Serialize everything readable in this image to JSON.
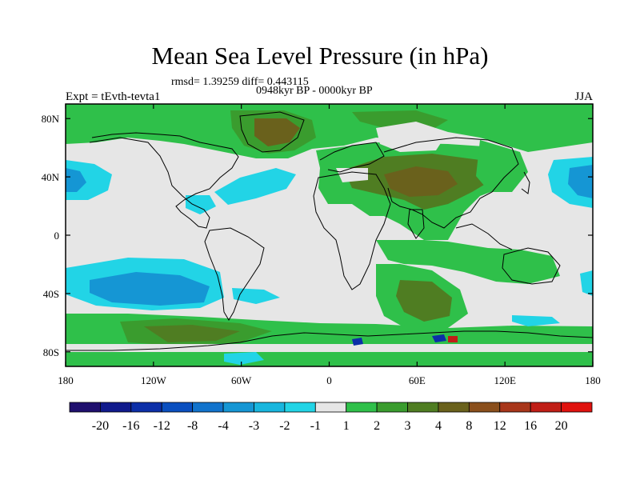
{
  "chart_data": {
    "type": "heatmap",
    "title": "Mean Sea Level Pressure (in hPa)",
    "stats": "rmsd= 1.39259 diff= 0.443115",
    "period": "0948kyr BP - 0000kyr BP",
    "experiment": "Expt = tEvth-tevta1",
    "season": "JJA",
    "x_ticks": [
      "180",
      "120W",
      "60W",
      "0",
      "60E",
      "120E",
      "180"
    ],
    "x_tick_values": [
      -180,
      -120,
      -60,
      0,
      60,
      120,
      180
    ],
    "y_ticks": [
      "80N",
      "40N",
      "0",
      "40S",
      "80S"
    ],
    "y_tick_values": [
      80,
      40,
      0,
      -40,
      -80
    ],
    "xlim": [
      -180,
      180
    ],
    "ylim": [
      -90,
      90
    ],
    "levels": [
      "-20",
      "-16",
      "-12",
      "-8",
      "-4",
      "-3",
      "-2",
      "-1",
      "1",
      "2",
      "3",
      "4",
      "8",
      "12",
      "16",
      "20"
    ],
    "colors": [
      "#1f0f6e",
      "#101a8c",
      "#0c2fa8",
      "#0a4fbf",
      "#1173cc",
      "#1596d4",
      "#18b6de",
      "#22d4e6",
      "#e6e6e6",
      "#2fc04a",
      "#3a9c2e",
      "#4f7d22",
      "#6a611c",
      "#8a4f1c",
      "#a8361a",
      "#c01e16",
      "#e0120e"
    ],
    "background_color": "#e6e6e6"
  }
}
